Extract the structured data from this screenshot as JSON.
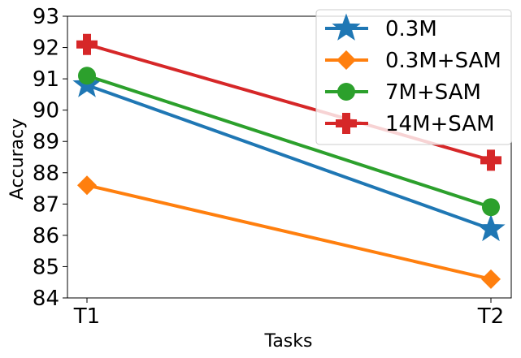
{
  "chart_data": {
    "type": "line",
    "title": "",
    "xlabel": "Tasks",
    "ylabel": "Accuracy",
    "categories": [
      "T1",
      "T2"
    ],
    "ylim": [
      84,
      93
    ],
    "yticks": [
      84,
      85,
      86,
      87,
      88,
      89,
      90,
      91,
      92,
      93
    ],
    "grid": false,
    "legend_position": "top-right",
    "series": [
      {
        "name": "0.3M",
        "values": [
          90.8,
          86.2
        ],
        "color": "#1f77b4",
        "marker": "star"
      },
      {
        "name": "0.3M+SAM",
        "values": [
          87.6,
          84.6
        ],
        "color": "#ff7f0e",
        "marker": "diamond"
      },
      {
        "name": "7M+SAM",
        "values": [
          91.1,
          86.9
        ],
        "color": "#2ca02c",
        "marker": "circle"
      },
      {
        "name": "14M+SAM",
        "values": [
          92.1,
          88.4
        ],
        "color": "#d62728",
        "marker": "plus"
      }
    ]
  }
}
